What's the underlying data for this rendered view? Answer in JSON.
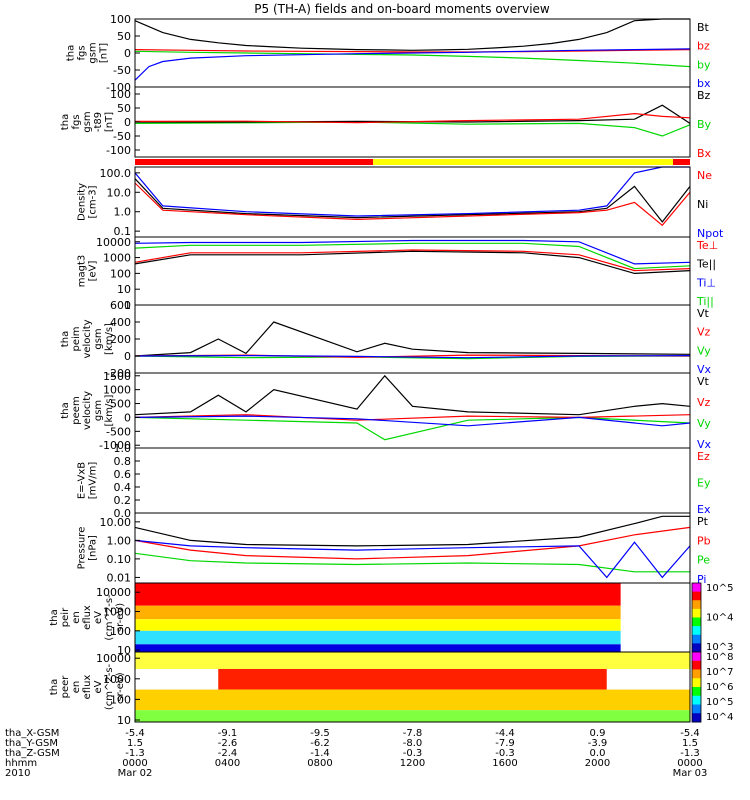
{
  "title": "P5 (TH-A) fields and on-board moments overview",
  "colors": {
    "black": "#000000",
    "red": "#ff0000",
    "green": "#00d800",
    "blue": "#0000ff",
    "yellow": "#ffff00"
  },
  "chart_data": [
    {
      "type": "line",
      "id": "fgs",
      "ylabel": "tha\nfgs\ngsm\n[nT]",
      "ticks": [
        "100",
        "50",
        "0",
        "-50",
        "-100"
      ],
      "tick_values": [
        100,
        50,
        0,
        -50,
        -100
      ],
      "ylim": [
        -100,
        100
      ],
      "log": false,
      "legend": [
        {
          "name": "Bt",
          "color": "#000000"
        },
        {
          "name": "bz",
          "color": "#ff0000"
        },
        {
          "name": "by",
          "color": "#00d800"
        },
        {
          "name": "bx",
          "color": "#0000ff"
        }
      ],
      "series": [
        {
          "color": "#000000",
          "x": [
            0,
            1,
            2,
            3,
            4,
            5,
            6,
            7,
            8,
            9,
            10,
            11,
            12,
            13,
            14,
            15,
            16,
            17,
            18,
            19,
            20
          ],
          "y": [
            95,
            60,
            40,
            30,
            22,
            18,
            14,
            12,
            10,
            9,
            8,
            9,
            11,
            15,
            20,
            28,
            40,
            60,
            95,
            100,
            100
          ]
        },
        {
          "color": "#ff0000",
          "x": [
            0,
            2,
            4,
            6,
            8,
            10,
            12,
            14,
            16,
            18,
            20
          ],
          "y": [
            10,
            8,
            6,
            5,
            4,
            3,
            3,
            4,
            6,
            8,
            10
          ]
        },
        {
          "color": "#00d800",
          "x": [
            0,
            2,
            4,
            6,
            8,
            10,
            12,
            14,
            16,
            18,
            20
          ],
          "y": [
            5,
            2,
            0,
            -2,
            -4,
            -6,
            -10,
            -15,
            -22,
            -30,
            -40
          ]
        },
        {
          "color": "#0000ff",
          "x": [
            0,
            0.5,
            1,
            2,
            4,
            6,
            8,
            10,
            12,
            14,
            16,
            18,
            20
          ],
          "y": [
            -80,
            -40,
            -25,
            -15,
            -8,
            -5,
            -2,
            0,
            2,
            5,
            8,
            10,
            12
          ]
        }
      ]
    },
    {
      "type": "line",
      "id": "fgs_hp",
      "ylabel": "tha\nfgs\ngsm\n-t89\n[nT]",
      "ticks": [
        "100",
        "50",
        "0",
        "-50",
        "-100"
      ],
      "tick_values": [
        100,
        50,
        0,
        -50,
        -100
      ],
      "ylim": [
        -125,
        125
      ],
      "log": false,
      "legend": [
        {
          "name": "Bz",
          "color": "#000000"
        },
        {
          "name": "By",
          "color": "#00d800"
        },
        {
          "name": "Bx",
          "color": "#ff0000"
        }
      ],
      "series": [
        {
          "color": "#00d800",
          "x": [
            0,
            4,
            8,
            12,
            16,
            18,
            19,
            20
          ],
          "y": [
            -5,
            -3,
            0,
            -8,
            -5,
            -20,
            -50,
            -10
          ]
        },
        {
          "color": "#000000",
          "x": [
            0,
            4,
            8,
            12,
            16,
            18,
            19,
            20
          ],
          "y": [
            0,
            0,
            2,
            0,
            5,
            10,
            60,
            -5
          ]
        },
        {
          "color": "#ff0000",
          "x": [
            0,
            4,
            8,
            12,
            16,
            18,
            19,
            20
          ],
          "y": [
            2,
            3,
            -2,
            5,
            10,
            30,
            20,
            15
          ]
        }
      ]
    },
    {
      "type": "line",
      "id": "density",
      "ylabel": "Density\n[cm-3]",
      "ticks": [
        "100.0",
        "10.0",
        "1.0",
        "0.1"
      ],
      "tick_values": [
        100,
        10,
        1,
        0.1
      ],
      "ylim": [
        0.05,
        200
      ],
      "log": true,
      "legend": [
        {
          "name": "Ne",
          "color": "#ff0000"
        },
        {
          "name": "Ni",
          "color": "#000000"
        },
        {
          "name": "Npot",
          "color": "#0000ff"
        }
      ],
      "series": [
        {
          "color": "#0000ff",
          "x": [
            0,
            1,
            4,
            8,
            12,
            16,
            17,
            18,
            19,
            20
          ],
          "y": [
            100,
            2,
            1,
            0.6,
            0.8,
            1.2,
            2,
            100,
            200,
            200
          ]
        },
        {
          "color": "#000000",
          "x": [
            0,
            1,
            4,
            8,
            12,
            16,
            17,
            18,
            19,
            20
          ],
          "y": [
            50,
            1.5,
            0.8,
            0.5,
            0.7,
            1,
            1.5,
            20,
            0.3,
            20
          ]
        },
        {
          "color": "#ff0000",
          "x": [
            0,
            1,
            4,
            8,
            12,
            16,
            17,
            18,
            19,
            20
          ],
          "y": [
            30,
            1.2,
            0.7,
            0.4,
            0.6,
            0.9,
            1.2,
            3,
            0.2,
            10
          ]
        }
      ]
    },
    {
      "type": "line",
      "id": "temperature",
      "ylabel": "magt3\n[eV]",
      "ticks": [
        "10000",
        "1000",
        "100",
        "10",
        "1"
      ],
      "tick_values": [
        10000,
        1000,
        100,
        10,
        1
      ],
      "ylim": [
        1,
        20000
      ],
      "log": true,
      "legend": [
        {
          "name": "Te⊥",
          "color": "#ff0000"
        },
        {
          "name": "Te||",
          "color": "#000000"
        },
        {
          "name": "Ti⊥",
          "color": "#0000ff"
        },
        {
          "name": "Ti||",
          "color": "#00d800"
        }
      ],
      "series": [
        {
          "color": "#0000ff",
          "x": [
            0,
            2,
            6,
            10,
            14,
            16,
            18,
            20
          ],
          "y": [
            8000,
            9000,
            9000,
            12000,
            12000,
            10000,
            400,
            500
          ]
        },
        {
          "color": "#00d800",
          "x": [
            0,
            2,
            6,
            10,
            14,
            16,
            18,
            20
          ],
          "y": [
            4000,
            6000,
            6000,
            8000,
            8000,
            5000,
            200,
            300
          ]
        },
        {
          "color": "#ff0000",
          "x": [
            0,
            2,
            6,
            10,
            14,
            16,
            18,
            20
          ],
          "y": [
            500,
            2000,
            2000,
            3000,
            2500,
            1500,
            150,
            200
          ]
        },
        {
          "color": "#000000",
          "x": [
            0,
            2,
            6,
            10,
            14,
            16,
            18,
            20
          ],
          "y": [
            400,
            1500,
            1500,
            2500,
            2000,
            1000,
            100,
            150
          ]
        }
      ]
    },
    {
      "type": "line",
      "id": "peim_velocity",
      "ylabel": "tha\npeim\nvelocity\ngsm\n[km/s]",
      "ticks": [
        "600",
        "400",
        "200",
        "0",
        "-200"
      ],
      "tick_values": [
        600,
        400,
        200,
        0,
        -200
      ],
      "ylim": [
        -200,
        600
      ],
      "log": false,
      "legend": [
        {
          "name": "Vt",
          "color": "#000000"
        },
        {
          "name": "Vz",
          "color": "#ff0000"
        },
        {
          "name": "Vy",
          "color": "#00d800"
        },
        {
          "name": "Vx",
          "color": "#0000ff"
        }
      ],
      "series": [
        {
          "color": "#000000",
          "x": [
            0,
            2,
            3,
            4,
            5,
            8,
            9,
            10,
            12,
            16,
            20
          ],
          "y": [
            0,
            40,
            200,
            30,
            400,
            50,
            150,
            80,
            40,
            30,
            20
          ]
        },
        {
          "color": "#00d800",
          "x": [
            0,
            4,
            8,
            12,
            16,
            20
          ],
          "y": [
            0,
            -20,
            -10,
            -30,
            -5,
            0
          ]
        },
        {
          "color": "#ff0000",
          "x": [
            0,
            4,
            8,
            12,
            16,
            20
          ],
          "y": [
            0,
            10,
            -15,
            10,
            5,
            0
          ]
        },
        {
          "color": "#0000ff",
          "x": [
            0,
            4,
            8,
            12,
            16,
            20
          ],
          "y": [
            0,
            5,
            -5,
            -20,
            0,
            5
          ]
        }
      ]
    },
    {
      "type": "line",
      "id": "peem_velocity",
      "ylabel": "tha\npeem\nvelocity\ngsm\n[km/s]",
      "ticks": [
        "1500",
        "1000",
        "500",
        "0",
        "-500",
        "-1000"
      ],
      "tick_values": [
        1500,
        1000,
        500,
        0,
        -500,
        -1000
      ],
      "ylim": [
        -1100,
        1600
      ],
      "log": false,
      "legend": [
        {
          "name": "Vt",
          "color": "#000000"
        },
        {
          "name": "Vz",
          "color": "#ff0000"
        },
        {
          "name": "Vy",
          "color": "#00d800"
        },
        {
          "name": "Vx",
          "color": "#0000ff"
        }
      ],
      "series": [
        {
          "color": "#000000",
          "x": [
            0,
            2,
            3,
            4,
            5,
            8,
            9,
            10,
            12,
            16,
            18,
            19,
            20
          ],
          "y": [
            100,
            200,
            800,
            200,
            1000,
            300,
            1500,
            400,
            200,
            100,
            400,
            500,
            400
          ]
        },
        {
          "color": "#00d800",
          "x": [
            0,
            4,
            8,
            9,
            12,
            16,
            20
          ],
          "y": [
            0,
            -100,
            -200,
            -800,
            -100,
            0,
            -200
          ]
        },
        {
          "color": "#ff0000",
          "x": [
            0,
            4,
            8,
            12,
            16,
            20
          ],
          "y": [
            0,
            100,
            -100,
            50,
            0,
            100
          ]
        },
        {
          "color": "#0000ff",
          "x": [
            0,
            4,
            8,
            12,
            16,
            19,
            20
          ],
          "y": [
            0,
            50,
            -50,
            -300,
            0,
            -300,
            -200
          ]
        }
      ]
    },
    {
      "type": "line",
      "id": "efield",
      "ylabel": "E=-VxB\n[mV/m]",
      "ticks": [
        "1.0",
        "0.8",
        "0.6",
        "0.4",
        "0.2",
        "0.0"
      ],
      "tick_values": [
        1,
        0.8,
        0.6,
        0.4,
        0.2,
        0
      ],
      "ylim": [
        0,
        1
      ],
      "log": false,
      "legend": [
        {
          "name": "Ez",
          "color": "#ff0000"
        },
        {
          "name": "Ey",
          "color": "#00d800"
        },
        {
          "name": "Ex",
          "color": "#0000ff"
        }
      ],
      "series": []
    },
    {
      "type": "line",
      "id": "pressure",
      "ylabel": "Pressure\n[nPa]",
      "ticks": [
        "10.00",
        "1.00",
        "0.10",
        "0.01"
      ],
      "tick_values": [
        10,
        1,
        0.1,
        0.01
      ],
      "ylim": [
        0.005,
        30
      ],
      "log": true,
      "legend": [
        {
          "name": "Pt",
          "color": "#000000"
        },
        {
          "name": "Pb",
          "color": "#ff0000"
        },
        {
          "name": "Pe",
          "color": "#00d800"
        },
        {
          "name": "Pi",
          "color": "#0000ff"
        }
      ],
      "series": [
        {
          "color": "#000000",
          "x": [
            0,
            2,
            4,
            8,
            12,
            16,
            18,
            19,
            20
          ],
          "y": [
            5,
            1,
            0.6,
            0.5,
            0.6,
            1.5,
            8,
            20,
            20
          ]
        },
        {
          "color": "#ff0000",
          "x": [
            0,
            2,
            4,
            8,
            12,
            16,
            18,
            20
          ],
          "y": [
            1,
            0.3,
            0.15,
            0.1,
            0.15,
            0.5,
            2,
            5
          ]
        },
        {
          "color": "#00d800",
          "x": [
            0,
            2,
            4,
            8,
            12,
            16,
            18,
            20
          ],
          "y": [
            0.2,
            0.08,
            0.06,
            0.05,
            0.06,
            0.05,
            0.02,
            0.02
          ]
        },
        {
          "color": "#0000ff",
          "x": [
            0,
            2,
            4,
            8,
            12,
            16,
            17,
            18,
            19,
            20
          ],
          "y": [
            1,
            0.5,
            0.4,
            0.3,
            0.4,
            0.5,
            0.01,
            0.8,
            0.01,
            0.5
          ]
        }
      ]
    },
    {
      "type": "heatmap",
      "id": "peir",
      "ylabel": "tha\npeir\nen\neflux\neV\n(cm^2-s-\nsr-eV)",
      "ticks": [
        "10000",
        "1000",
        "100",
        "10"
      ],
      "tick_values": [
        10000,
        1000,
        100,
        10
      ],
      "ylim": [
        8,
        30000
      ],
      "log": true,
      "colorbar": [
        "10^5",
        "10^4",
        "10^3"
      ],
      "bands": [
        {
          "x0": 0,
          "x1": 17.5,
          "y0": 2000,
          "y1": 30000,
          "color": "#ff0000"
        },
        {
          "x0": 0,
          "x1": 17.5,
          "y0": 400,
          "y1": 2000,
          "color": "#ffb000"
        },
        {
          "x0": 0,
          "x1": 17.5,
          "y0": 100,
          "y1": 400,
          "color": "#ffff00"
        },
        {
          "x0": 0,
          "x1": 17.5,
          "y0": 20,
          "y1": 100,
          "color": "#30e0ff"
        },
        {
          "x0": 0,
          "x1": 17.5,
          "y0": 8,
          "y1": 20,
          "color": "#0000e0"
        }
      ]
    },
    {
      "type": "heatmap",
      "id": "peer",
      "ylabel": "tha\npeer\nen\neflux\neV\n(cm^2-s-\nsr-eV)",
      "ticks": [
        "10000",
        "1000",
        "100",
        "10"
      ],
      "tick_values": [
        10000,
        1000,
        100,
        10
      ],
      "ylim": [
        8,
        20000
      ],
      "log": true,
      "colorbar": [
        "10^8",
        "10^7",
        "10^6",
        "10^5",
        "10^4"
      ],
      "bands": [
        {
          "x0": 0,
          "x1": 20,
          "y0": 3000,
          "y1": 20000,
          "color": "#ffff40"
        },
        {
          "x0": 3,
          "x1": 17,
          "y0": 300,
          "y1": 3000,
          "color": "#ff2000"
        },
        {
          "x0": 0,
          "x1": 20,
          "y0": 30,
          "y1": 300,
          "color": "#ffd000"
        },
        {
          "x0": 0,
          "x1": 20,
          "y0": 8,
          "y1": 30,
          "color": "#80ff40"
        }
      ]
    }
  ],
  "xaxis": {
    "rows": [
      {
        "label": "tha_X-GSM",
        "values": [
          "-5.4",
          "-9.1",
          "-9.5",
          "-7.8",
          "-4.4",
          "0.9",
          "-5.4"
        ]
      },
      {
        "label": "tha_Y-GSM",
        "values": [
          "1.5",
          "-2.6",
          "-6.2",
          "-8.0",
          "-7.9",
          "-3.9",
          "1.5"
        ]
      },
      {
        "label": "tha_Z-GSM",
        "values": [
          "-1.3",
          "-2.4",
          "-1.4",
          "-0.3",
          "-0.3",
          "0.0",
          "-1.3"
        ]
      },
      {
        "label": "hhmm",
        "values": [
          "0000",
          "0400",
          "0800",
          "1200",
          "1600",
          "2000",
          "0000"
        ]
      },
      {
        "label": "2010",
        "values": [
          "Mar 02",
          "",
          "",
          "",
          "",
          "",
          "Mar 03"
        ]
      }
    ]
  }
}
